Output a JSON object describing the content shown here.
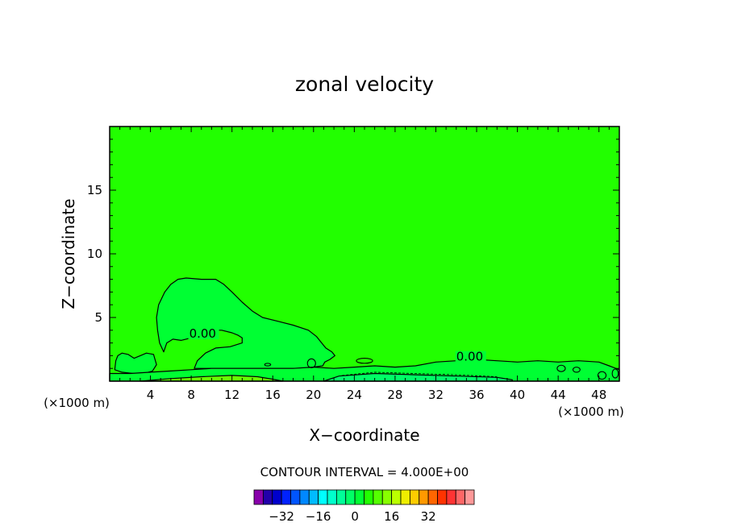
{
  "chart_data": {
    "type": "contour",
    "title": "zonal velocity",
    "xlabel": "X−coordinate",
    "ylabel": "Z−coordinate",
    "x_unit_left": "(×1000 m)",
    "x_unit_right": "(×1000 m)",
    "xlim": [
      0,
      50
    ],
    "ylim": [
      0,
      20
    ],
    "x_ticks": [
      {
        "value": 4,
        "label": "4"
      },
      {
        "value": 8,
        "label": "8"
      },
      {
        "value": 12,
        "label": "12"
      },
      {
        "value": 16,
        "label": "16"
      },
      {
        "value": 20,
        "label": "20"
      },
      {
        "value": 24,
        "label": "24"
      },
      {
        "value": 28,
        "label": "28"
      },
      {
        "value": 32,
        "label": "32"
      },
      {
        "value": 36,
        "label": "36"
      },
      {
        "value": 40,
        "label": "40"
      },
      {
        "value": 44,
        "label": "44"
      },
      {
        "value": 48,
        "label": "48"
      }
    ],
    "y_ticks": [
      {
        "value": 5,
        "label": "5"
      },
      {
        "value": 10,
        "label": "10"
      },
      {
        "value": 15,
        "label": "15"
      }
    ],
    "background_color": "#22ff00",
    "contour_labels": [
      {
        "text": "0.00",
        "x": 7.8,
        "z": 3.6
      },
      {
        "text": "0.00",
        "x": 34.0,
        "z": 1.8
      }
    ],
    "regions": [
      {
        "name": "plume",
        "color": "#00ff33",
        "points": [
          [
            5.3,
            2.3
          ],
          [
            4.9,
            3.0
          ],
          [
            4.7,
            4.0
          ],
          [
            4.6,
            5.0
          ],
          [
            4.8,
            6.0
          ],
          [
            5.4,
            7.0
          ],
          [
            6.0,
            7.6
          ],
          [
            6.7,
            8.0
          ],
          [
            7.5,
            8.1
          ],
          [
            9.0,
            8.0
          ],
          [
            10.4,
            8.0
          ],
          [
            11.2,
            7.6
          ],
          [
            12.0,
            7.0
          ],
          [
            13.0,
            6.2
          ],
          [
            14.0,
            5.5
          ],
          [
            15.0,
            5.0
          ],
          [
            16.5,
            4.7
          ],
          [
            18.0,
            4.4
          ],
          [
            19.5,
            4.0
          ],
          [
            20.3,
            3.5
          ],
          [
            20.8,
            3.0
          ],
          [
            21.2,
            2.6
          ],
          [
            21.8,
            2.3
          ],
          [
            22.1,
            2.0
          ],
          [
            21.6,
            1.7
          ],
          [
            21.1,
            1.5
          ],
          [
            20.9,
            1.2
          ],
          [
            19.0,
            1.0
          ],
          [
            16.0,
            1.0
          ],
          [
            13.0,
            1.0
          ],
          [
            10.0,
            1.0
          ],
          [
            8.3,
            1.0
          ],
          [
            8.6,
            1.6
          ],
          [
            9.4,
            2.2
          ],
          [
            10.4,
            2.6
          ],
          [
            11.8,
            2.7
          ],
          [
            13.0,
            3.0
          ],
          [
            13.0,
            3.4
          ],
          [
            12.6,
            3.6
          ],
          [
            12.0,
            3.8
          ],
          [
            11.0,
            4.0
          ],
          [
            10.0,
            4.0
          ],
          [
            9.0,
            3.7
          ],
          [
            8.0,
            3.4
          ],
          [
            7.0,
            3.2
          ],
          [
            6.2,
            3.3
          ],
          [
            5.6,
            3.0
          ]
        ]
      },
      {
        "name": "left-patch",
        "color": "#00ff33",
        "points": [
          [
            0.5,
            0.9
          ],
          [
            0.6,
            1.6
          ],
          [
            0.8,
            2.0
          ],
          [
            1.2,
            2.2
          ],
          [
            1.8,
            2.1
          ],
          [
            2.4,
            1.8
          ],
          [
            3.0,
            2.0
          ],
          [
            3.6,
            2.2
          ],
          [
            4.3,
            2.1
          ],
          [
            4.6,
            1.3
          ],
          [
            4.2,
            0.8
          ],
          [
            3.4,
            0.6
          ],
          [
            2.3,
            0.6
          ],
          [
            1.2,
            0.7
          ]
        ]
      },
      {
        "name": "bottom-band",
        "color": "#00ff33",
        "points": [
          [
            0.0,
            0.0
          ],
          [
            0.0,
            0.6
          ],
          [
            2.0,
            0.6
          ],
          [
            4.0,
            0.7
          ],
          [
            6.0,
            0.8
          ],
          [
            8.0,
            0.9
          ],
          [
            10.0,
            1.0
          ],
          [
            14.0,
            1.0
          ],
          [
            18.0,
            1.0
          ],
          [
            20.0,
            1.1
          ],
          [
            22.0,
            1.0
          ],
          [
            24.0,
            1.1
          ],
          [
            26.0,
            1.2
          ],
          [
            28.0,
            1.1
          ],
          [
            30.0,
            1.2
          ],
          [
            32.0,
            1.5
          ],
          [
            34.0,
            1.6
          ],
          [
            36.0,
            1.7
          ],
          [
            38.0,
            1.6
          ],
          [
            40.0,
            1.5
          ],
          [
            42.0,
            1.6
          ],
          [
            44.0,
            1.5
          ],
          [
            46.0,
            1.6
          ],
          [
            48.0,
            1.5
          ],
          [
            49.0,
            1.2
          ],
          [
            50.0,
            0.9
          ],
          [
            50.0,
            0.0
          ]
        ]
      },
      {
        "name": "negative-strip",
        "color": "#00ff66",
        "points": [
          [
            21.0,
            0.0
          ],
          [
            22.5,
            0.4
          ],
          [
            26.0,
            0.6
          ],
          [
            30.0,
            0.5
          ],
          [
            34.0,
            0.4
          ],
          [
            38.0,
            0.3
          ],
          [
            39.5,
            0.1
          ],
          [
            39.5,
            0.0
          ]
        ]
      },
      {
        "name": "positive-strip",
        "color": "#66ff00",
        "points": [
          [
            3.0,
            0.0
          ],
          [
            6.0,
            0.2
          ],
          [
            9.0,
            0.35
          ],
          [
            12.0,
            0.45
          ],
          [
            14.5,
            0.35
          ],
          [
            16.0,
            0.15
          ],
          [
            17.0,
            0.0
          ]
        ]
      }
    ],
    "small_contours": [
      {
        "cx": 19.8,
        "cz": 1.4,
        "rx": 0.4,
        "rz": 0.35
      },
      {
        "cx": 25.0,
        "cz": 1.6,
        "rx": 0.8,
        "rz": 0.2
      },
      {
        "cx": 44.3,
        "cz": 1.0,
        "rx": 0.4,
        "rz": 0.25
      },
      {
        "cx": 45.8,
        "cz": 0.9,
        "rx": 0.35,
        "rz": 0.2
      },
      {
        "cx": 48.3,
        "cz": 0.45,
        "rx": 0.4,
        "rz": 0.3
      },
      {
        "cx": 49.6,
        "cz": 0.6,
        "rx": 0.3,
        "rz": 0.35
      },
      {
        "cx": 15.5,
        "cz": 1.3,
        "rx": 0.3,
        "rz": 0.1
      }
    ],
    "contour_interval_text": "CONTOUR INTERVAL = 4.000E+00",
    "colorbar": {
      "colors": [
        "#8800aa",
        "#2200aa",
        "#0000cc",
        "#0022ff",
        "#0055ff",
        "#0088ff",
        "#00bbff",
        "#00ffff",
        "#00ffcc",
        "#00ff99",
        "#00ff66",
        "#00ff33",
        "#22ff00",
        "#55ff00",
        "#88ff00",
        "#bbff00",
        "#eeee00",
        "#ffcc00",
        "#ff9900",
        "#ff6600",
        "#ff3300",
        "#ff3333",
        "#ff6666",
        "#ff9999"
      ],
      "tick_labels": [
        {
          "label": "−32",
          "index": 2
        },
        {
          "label": "−16",
          "index": 6
        },
        {
          "label": "0",
          "index": 10
        },
        {
          "label": "16",
          "index": 14
        },
        {
          "label": "32",
          "index": 18
        }
      ]
    }
  }
}
